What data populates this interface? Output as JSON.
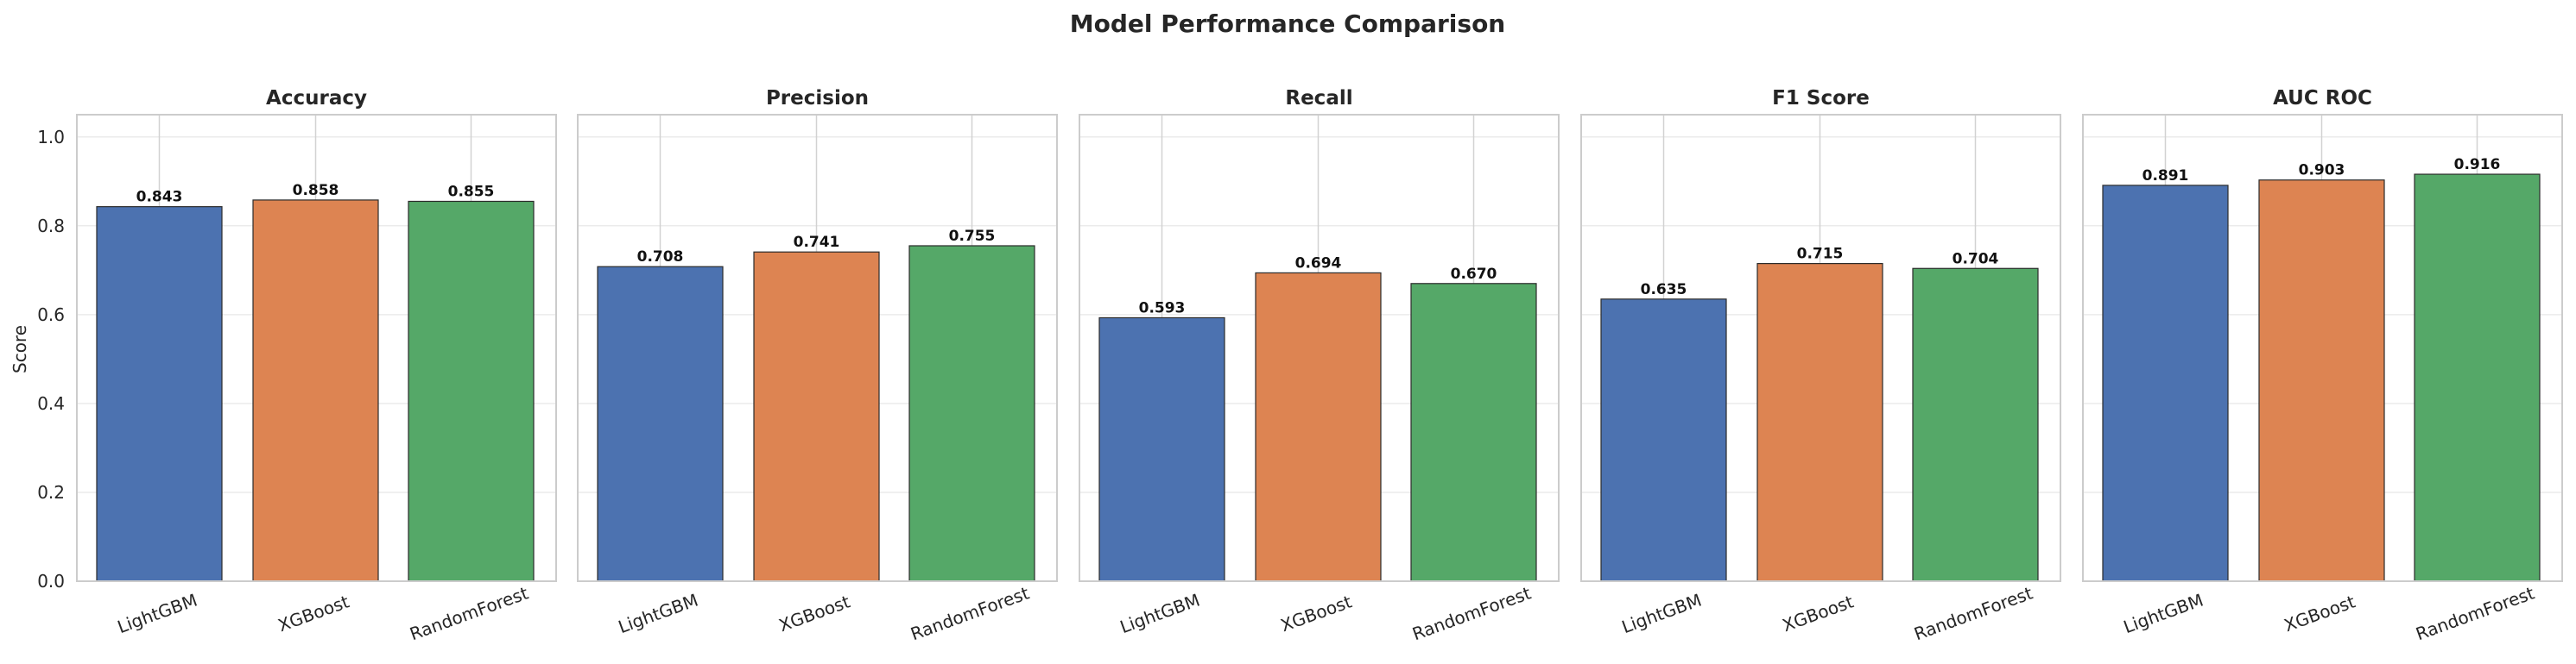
{
  "title": "Model Performance Comparison",
  "ylabel": "Score",
  "ylim": [
    0,
    1.05
  ],
  "yticks": [
    "0.0",
    "0.2",
    "0.4",
    "0.6",
    "0.8",
    "1.0"
  ],
  "colors": {
    "LightGBM": "#4c72b0",
    "XGBoost": "#dd8452",
    "RandomForest": "#55a868",
    "grid": "#ebebeb",
    "frame": "#cccccc",
    "bar_edge": "#2b2b2b"
  },
  "chart_data": [
    {
      "type": "bar",
      "title": "Accuracy",
      "categories": [
        "LightGBM",
        "XGBoost",
        "RandomForest"
      ],
      "values": [
        0.843,
        0.858,
        0.855
      ],
      "value_labels": [
        "0.843",
        "0.858",
        "0.855"
      ]
    },
    {
      "type": "bar",
      "title": "Precision",
      "categories": [
        "LightGBM",
        "XGBoost",
        "RandomForest"
      ],
      "values": [
        0.708,
        0.741,
        0.755
      ],
      "value_labels": [
        "0.708",
        "0.741",
        "0.755"
      ]
    },
    {
      "type": "bar",
      "title": "Recall",
      "categories": [
        "LightGBM",
        "XGBoost",
        "RandomForest"
      ],
      "values": [
        0.593,
        0.694,
        0.67
      ],
      "value_labels": [
        "0.593",
        "0.694",
        "0.670"
      ]
    },
    {
      "type": "bar",
      "title": "F1 Score",
      "categories": [
        "LightGBM",
        "XGBoost",
        "RandomForest"
      ],
      "values": [
        0.635,
        0.715,
        0.704
      ],
      "value_labels": [
        "0.635",
        "0.715",
        "0.704"
      ]
    },
    {
      "type": "bar",
      "title": "AUC ROC",
      "categories": [
        "LightGBM",
        "XGBoost",
        "RandomForest"
      ],
      "values": [
        0.891,
        0.903,
        0.916
      ],
      "value_labels": [
        "0.891",
        "0.903",
        "0.916"
      ]
    }
  ]
}
